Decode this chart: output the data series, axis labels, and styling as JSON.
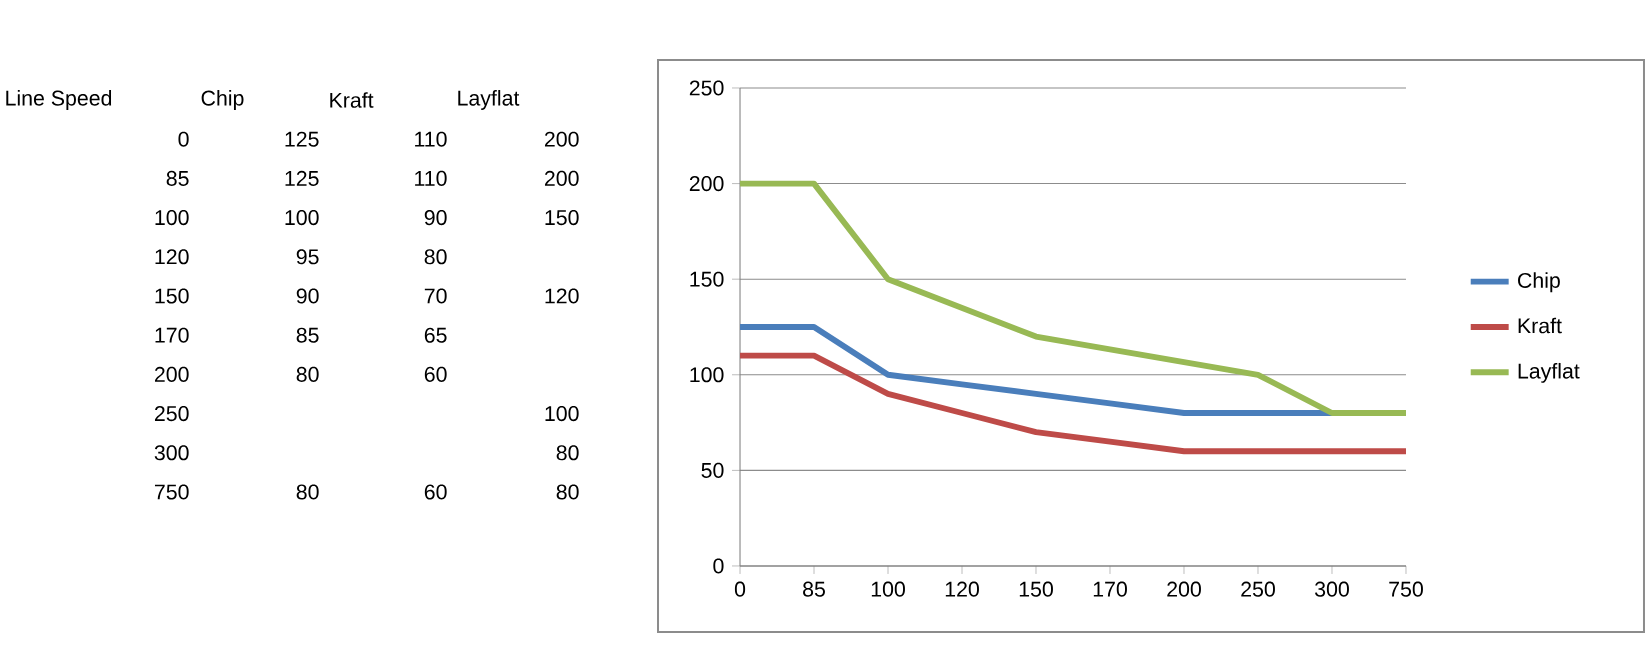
{
  "chart_data": [
    {
      "type": "other",
      "annotations": [
        "Line Speed",
        "Chip",
        "Kraft",
        "Layflat",
        "0",
        "125",
        "110",
        "200",
        "85",
        "125",
        "110",
        "200",
        "100",
        "100",
        "90",
        "150",
        "120",
        "95",
        "80",
        null,
        "150",
        "90",
        "70",
        "120",
        "170",
        "85",
        "65",
        null,
        "200",
        "80",
        "60",
        null,
        "250",
        null,
        null,
        "100",
        "300",
        null,
        null,
        "80",
        "750",
        "80",
        "60",
        "80"
      ]
    },
    {
      "type": "line",
      "categories": [
        "0",
        "85",
        "100",
        "120",
        "150",
        "170",
        "200",
        "250",
        "300",
        "750"
      ],
      "series": [
        {
          "name": "Chip",
          "color": "#4a7ebb",
          "values": [
            125,
            125,
            100,
            95,
            90,
            85,
            80,
            null,
            null,
            80
          ]
        },
        {
          "name": "Kraft",
          "color": "#be4b48",
          "values": [
            110,
            110,
            90,
            80,
            70,
            65,
            60,
            null,
            null,
            60
          ]
        },
        {
          "name": "Layflat",
          "color": "#98b954",
          "values": [
            200,
            200,
            150,
            null,
            120,
            null,
            null,
            100,
            80,
            80
          ]
        }
      ],
      "ylim": [
        0,
        250
      ],
      "yticks": [
        0,
        50,
        100,
        150,
        200,
        250
      ],
      "grid": "y",
      "legend": "right"
    }
  ]
}
